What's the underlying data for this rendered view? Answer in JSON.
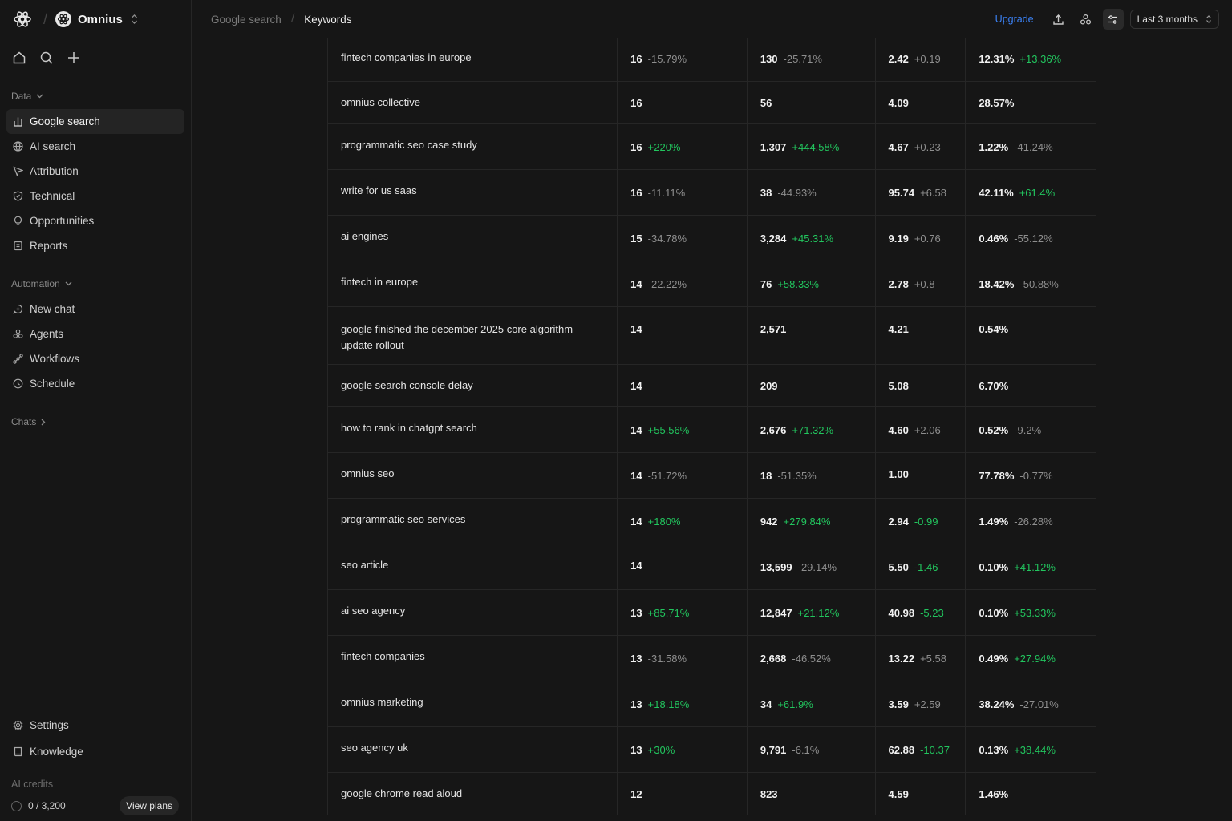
{
  "workspace": {
    "name": "Omnius"
  },
  "sidebar": {
    "data_label": "Data",
    "data_items": [
      {
        "label": "Google search",
        "icon": "bar-chart-icon",
        "active": true
      },
      {
        "label": "AI search",
        "icon": "globe-icon"
      },
      {
        "label": "Attribution",
        "icon": "cursor-icon"
      },
      {
        "label": "Technical",
        "icon": "shield-icon"
      },
      {
        "label": "Opportunities",
        "icon": "lightbulb-icon"
      },
      {
        "label": "Reports",
        "icon": "document-icon"
      }
    ],
    "automation_label": "Automation",
    "automation_items": [
      {
        "label": "New chat",
        "icon": "chat-plus-icon"
      },
      {
        "label": "Agents",
        "icon": "agents-icon"
      },
      {
        "label": "Workflows",
        "icon": "workflow-icon"
      },
      {
        "label": "Schedule",
        "icon": "clock-icon"
      }
    ],
    "chats_label": "Chats",
    "bottom_items": [
      {
        "label": "Settings",
        "icon": "gear-icon"
      },
      {
        "label": "Knowledge",
        "icon": "book-icon"
      }
    ],
    "credits_label": "AI credits",
    "credits_value": "0 / 3,200",
    "view_plans": "View plans"
  },
  "topbar": {
    "breadcrumb_parent": "Google search",
    "breadcrumb_current": "Keywords",
    "upgrade": "Upgrade",
    "date_range": "Last 3 months"
  },
  "colors": {
    "positive": "#22c55e",
    "neutral": "#8e8e8e",
    "accent": "#3b82f6"
  },
  "rows": [
    {
      "kw": "fintech companies in europe",
      "cols": [
        [
          "16",
          "-15.79%",
          "n"
        ],
        [
          "130",
          "-25.71%",
          "n"
        ],
        [
          "2.42",
          "+0.19",
          "n"
        ],
        [
          "12.31%",
          "+13.36%",
          "p"
        ]
      ],
      "h": 54,
      "partial": true
    },
    {
      "kw": "omnius collective",
      "cols": [
        [
          "16",
          "",
          ""
        ],
        [
          "56",
          "",
          ""
        ],
        [
          "4.09",
          "",
          ""
        ],
        [
          "28.57%",
          "",
          ""
        ]
      ],
      "h": 53
    },
    {
      "kw": "programmatic seo case study",
      "cols": [
        [
          "16",
          "+220%",
          "p"
        ],
        [
          "1,307",
          "+444.58%",
          "p"
        ],
        [
          "4.67",
          "+0.23",
          "n"
        ],
        [
          "1.22%",
          "-41.24%",
          "n"
        ]
      ],
      "h": 57
    },
    {
      "kw": "write for us saas",
      "cols": [
        [
          "16",
          "-11.11%",
          "n"
        ],
        [
          "38",
          "-44.93%",
          "n"
        ],
        [
          "95.74",
          "+6.58",
          "n"
        ],
        [
          "42.11%",
          "+61.4%",
          "p"
        ]
      ],
      "h": 57
    },
    {
      "kw": "ai engines",
      "cols": [
        [
          "15",
          "-34.78%",
          "n"
        ],
        [
          "3,284",
          "+45.31%",
          "p"
        ],
        [
          "9.19",
          "+0.76",
          "n"
        ],
        [
          "0.46%",
          "-55.12%",
          "n"
        ]
      ],
      "h": 57
    },
    {
      "kw": "fintech in europe",
      "cols": [
        [
          "14",
          "-22.22%",
          "n"
        ],
        [
          "76",
          "+58.33%",
          "p"
        ],
        [
          "2.78",
          "+0.8",
          "n"
        ],
        [
          "18.42%",
          "-50.88%",
          "n"
        ]
      ],
      "h": 57
    },
    {
      "kw": "google finished the december 2025 core algorithm update rollout",
      "cols": [
        [
          "14",
          "",
          ""
        ],
        [
          "2,571",
          "",
          ""
        ],
        [
          "4.21",
          "",
          ""
        ],
        [
          "0.54%",
          "",
          ""
        ]
      ],
      "h": 72
    },
    {
      "kw": "google search console delay",
      "cols": [
        [
          "14",
          "",
          ""
        ],
        [
          "209",
          "",
          ""
        ],
        [
          "5.08",
          "",
          ""
        ],
        [
          "6.70%",
          "",
          ""
        ]
      ],
      "h": 53
    },
    {
      "kw": "how to rank in chatgpt search",
      "cols": [
        [
          "14",
          "+55.56%",
          "p"
        ],
        [
          "2,676",
          "+71.32%",
          "p"
        ],
        [
          "4.60",
          "+2.06",
          "n"
        ],
        [
          "0.52%",
          "-9.2%",
          "n"
        ]
      ],
      "h": 57
    },
    {
      "kw": "omnius seo",
      "cols": [
        [
          "14",
          "-51.72%",
          "n"
        ],
        [
          "18",
          "-51.35%",
          "n"
        ],
        [
          "1.00",
          "",
          ""
        ],
        [
          "77.78%",
          "-0.77%",
          "n"
        ]
      ],
      "h": 57
    },
    {
      "kw": "programmatic seo services",
      "cols": [
        [
          "14",
          "+180%",
          "p"
        ],
        [
          "942",
          "+279.84%",
          "p"
        ],
        [
          "2.94",
          "-0.99",
          "p"
        ],
        [
          "1.49%",
          "-26.28%",
          "n"
        ]
      ],
      "h": 57
    },
    {
      "kw": "seo article",
      "cols": [
        [
          "14",
          "",
          ""
        ],
        [
          "13,599",
          "-29.14%",
          "n"
        ],
        [
          "5.50",
          "-1.46",
          "p"
        ],
        [
          "0.10%",
          "+41.12%",
          "p"
        ]
      ],
      "h": 57
    },
    {
      "kw": "ai seo agency",
      "cols": [
        [
          "13",
          "+85.71%",
          "p"
        ],
        [
          "12,847",
          "+21.12%",
          "p"
        ],
        [
          "40.98",
          "-5.23",
          "p"
        ],
        [
          "0.10%",
          "+53.33%",
          "p"
        ]
      ],
      "h": 57
    },
    {
      "kw": "fintech companies",
      "cols": [
        [
          "13",
          "-31.58%",
          "n"
        ],
        [
          "2,668",
          "-46.52%",
          "n"
        ],
        [
          "13.22",
          "+5.58",
          "n"
        ],
        [
          "0.49%",
          "+27.94%",
          "p"
        ]
      ],
      "h": 57
    },
    {
      "kw": "omnius marketing",
      "cols": [
        [
          "13",
          "+18.18%",
          "p"
        ],
        [
          "34",
          "+61.9%",
          "p"
        ],
        [
          "3.59",
          "+2.59",
          "n"
        ],
        [
          "38.24%",
          "-27.01%",
          "n"
        ]
      ],
      "h": 57
    },
    {
      "kw": "seo agency uk",
      "cols": [
        [
          "13",
          "+30%",
          "p"
        ],
        [
          "9,791",
          "-6.1%",
          "n"
        ],
        [
          "62.88",
          "-10.37",
          "p"
        ],
        [
          "0.13%",
          "+38.44%",
          "p"
        ]
      ],
      "h": 57
    },
    {
      "kw": "google chrome read aloud",
      "cols": [
        [
          "12",
          "",
          ""
        ],
        [
          "823",
          "",
          ""
        ],
        [
          "4.59",
          "",
          ""
        ],
        [
          "1.46%",
          "",
          ""
        ]
      ],
      "h": 53
    }
  ]
}
